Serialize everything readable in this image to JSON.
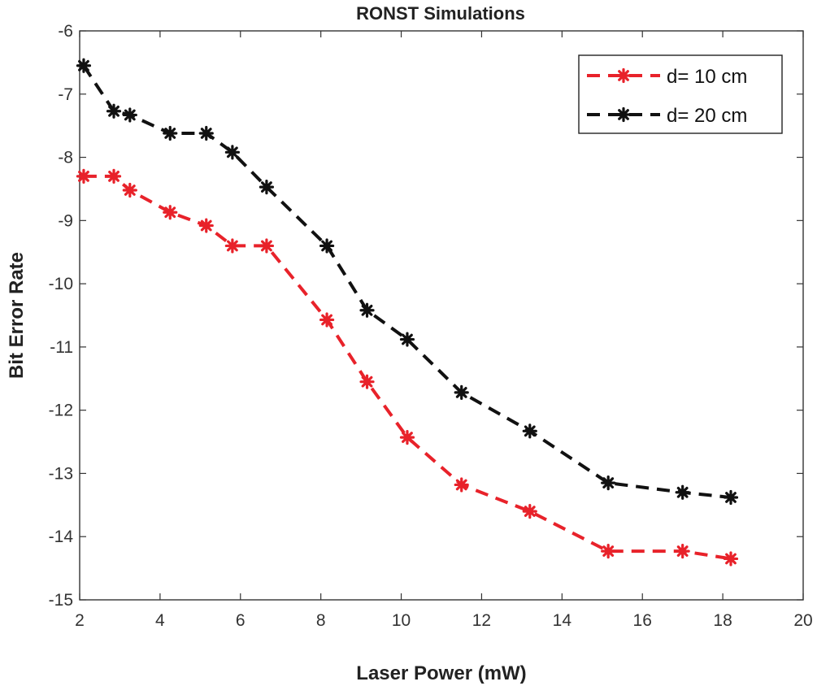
{
  "chart_data": {
    "type": "line",
    "title": "RONST Simulations",
    "xlabel": "Laser Power (mW)",
    "ylabel": "Bit Error Rate",
    "xlim": [
      2,
      20
    ],
    "ylim": [
      -15,
      -6
    ],
    "xticks": [
      2,
      4,
      6,
      8,
      10,
      12,
      14,
      16,
      18,
      20
    ],
    "yticks": [
      -6,
      -7,
      -8,
      -9,
      -10,
      -11,
      -12,
      -13,
      -14,
      -15
    ],
    "legend_position": "top-right",
    "grid": false,
    "series": [
      {
        "name": "d= 10 cm",
        "color": "#e8222a",
        "line_style": "dashed",
        "marker": "asterisk",
        "x": [
          2.1,
          2.85,
          3.25,
          4.25,
          5.15,
          5.8,
          6.65,
          8.15,
          9.15,
          10.15,
          11.5,
          13.2,
          15.15,
          17.0,
          18.2
        ],
        "y": [
          -8.3,
          -8.3,
          -8.52,
          -8.87,
          -9.08,
          -9.4,
          -9.4,
          -10.57,
          -11.55,
          -12.43,
          -13.18,
          -13.6,
          -14.23,
          -14.23,
          -14.35
        ]
      },
      {
        "name": "d= 20 cm",
        "color": "#111111",
        "line_style": "dashed",
        "marker": "asterisk",
        "x": [
          2.1,
          2.85,
          3.25,
          4.25,
          5.15,
          5.8,
          6.65,
          8.15,
          9.15,
          10.15,
          11.5,
          13.2,
          15.15,
          17.0,
          18.2
        ],
        "y": [
          -6.55,
          -7.27,
          -7.33,
          -7.62,
          -7.62,
          -7.92,
          -8.47,
          -9.4,
          -10.42,
          -10.88,
          -11.72,
          -12.33,
          -13.15,
          -13.3,
          -13.38
        ]
      }
    ]
  }
}
